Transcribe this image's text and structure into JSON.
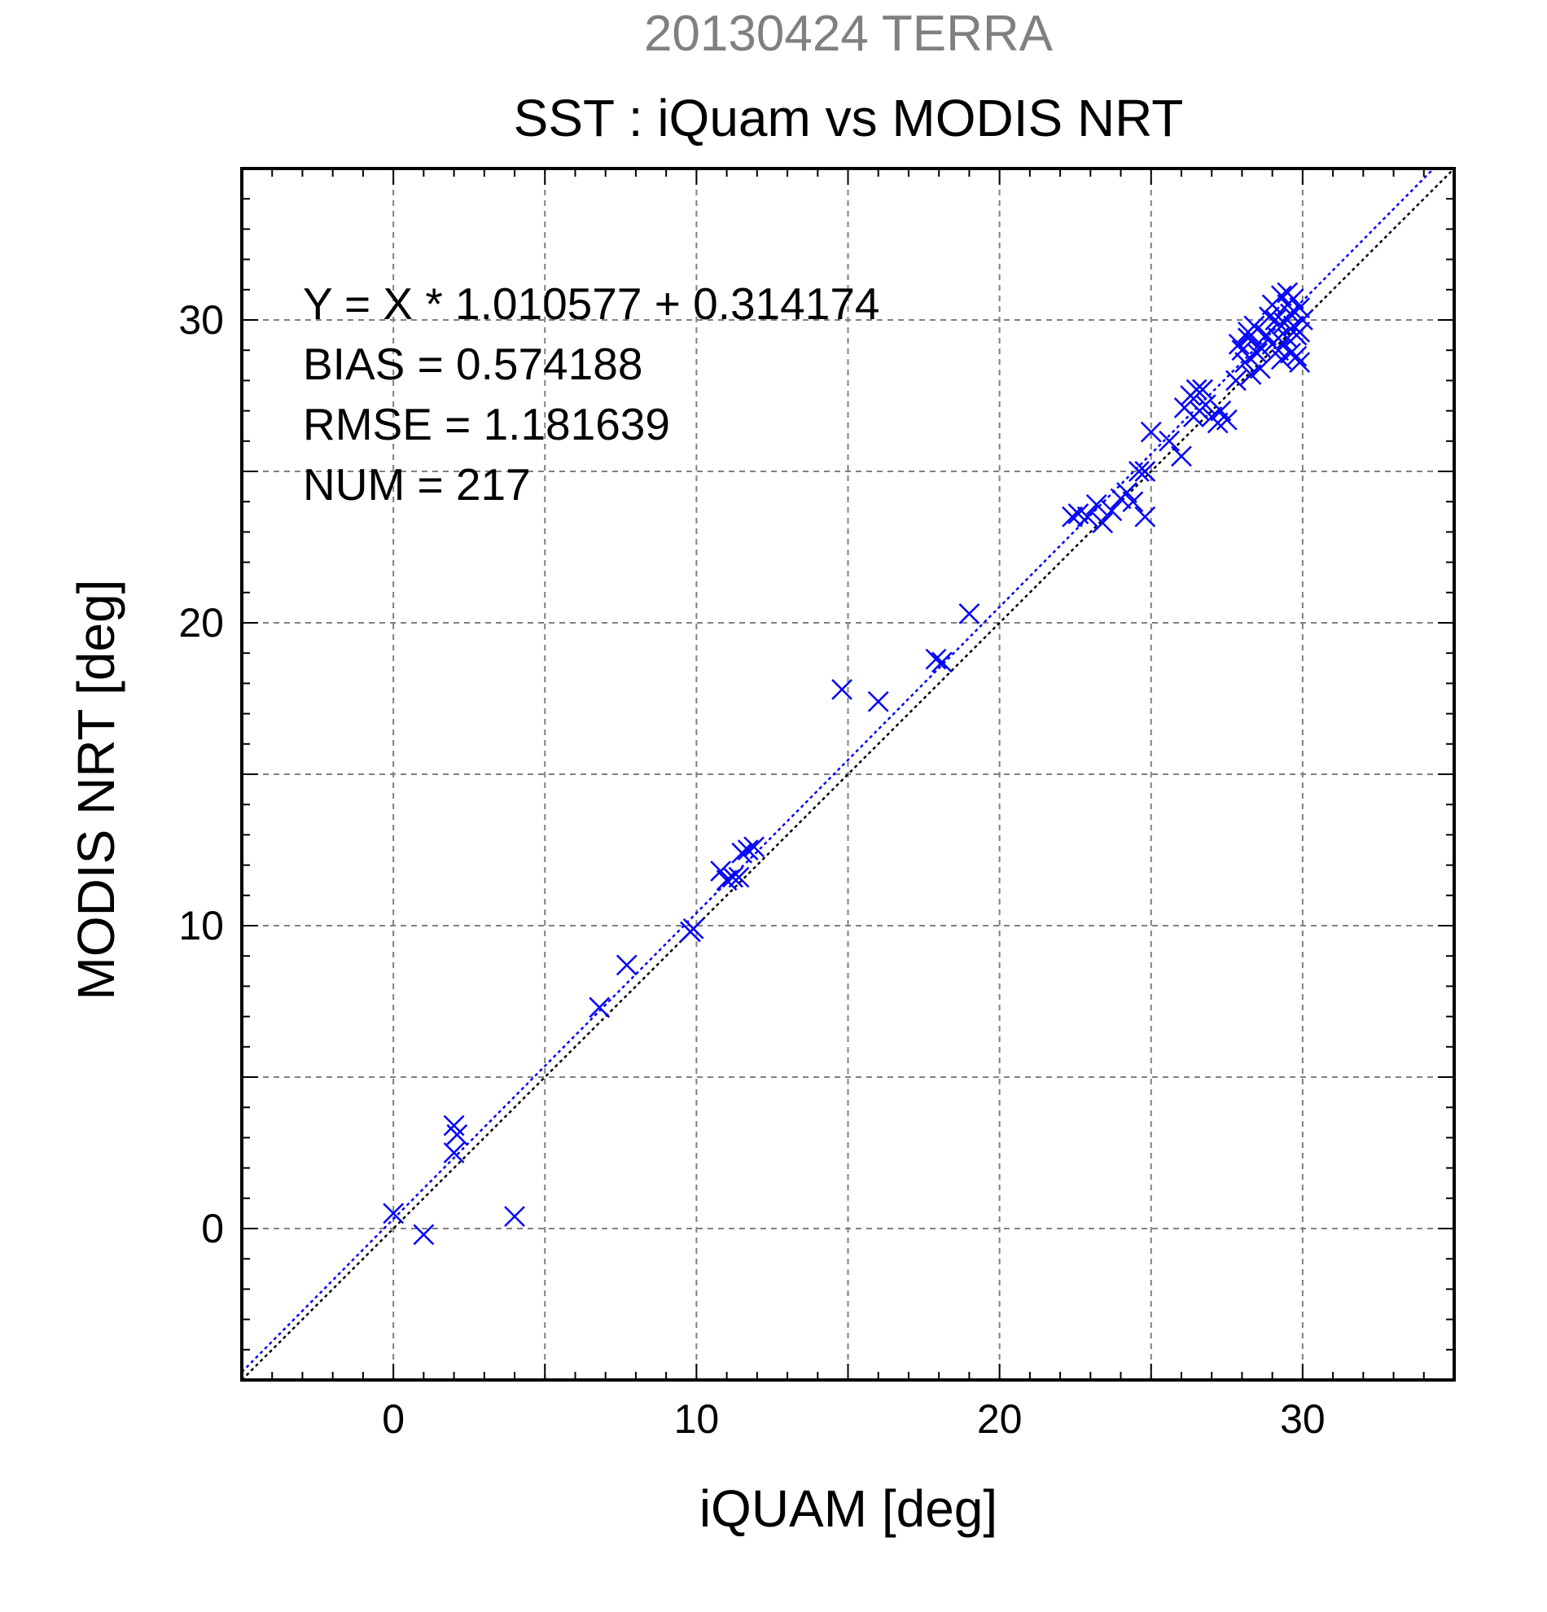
{
  "chart_data": {
    "type": "scatter",
    "date_label": "20130424 TERRA",
    "title": "SST : iQuam vs MODIS NRT",
    "xlabel": "iQUAM [deg]",
    "ylabel": "MODIS NRT [deg]",
    "xlim": [
      -5,
      35
    ],
    "ylim": [
      -5,
      35
    ],
    "xticks": [
      0,
      10,
      20,
      30
    ],
    "yticks": [
      0,
      10,
      20,
      30
    ],
    "grid": true,
    "stats": [
      "Y = X * 1.010577 + 0.314174",
      "BIAS = 0.574188",
      "RMSE = 1.181639",
      "NUM = 217"
    ],
    "regression": {
      "slope": 1.010577,
      "intercept": 0.314174,
      "color": "#0000ff"
    },
    "identity_line_color": "#000000",
    "marker_color": "#0000ff",
    "series": [
      {
        "marker": "x",
        "points": [
          [
            0.0,
            0.5
          ],
          [
            1.0,
            -0.2
          ],
          [
            2.0,
            3.4
          ],
          [
            2.1,
            3.1
          ],
          [
            2.0,
            2.5
          ],
          [
            4.0,
            0.4
          ],
          [
            6.8,
            7.3
          ],
          [
            7.7,
            8.7
          ],
          [
            9.8,
            9.8
          ],
          [
            9.9,
            9.9
          ],
          [
            10.8,
            11.8
          ],
          [
            11.0,
            11.5
          ],
          [
            11.2,
            11.6
          ],
          [
            11.4,
            11.6
          ],
          [
            11.5,
            12.4
          ],
          [
            11.7,
            12.5
          ],
          [
            11.9,
            12.6
          ],
          [
            14.8,
            17.8
          ],
          [
            16.0,
            17.4
          ],
          [
            17.9,
            18.8
          ],
          [
            18.1,
            18.7
          ],
          [
            19.0,
            20.3
          ],
          [
            22.4,
            23.5
          ],
          [
            22.6,
            23.6
          ],
          [
            22.9,
            23.5
          ],
          [
            23.2,
            23.9
          ],
          [
            23.4,
            23.3
          ],
          [
            23.7,
            23.7
          ],
          [
            24.0,
            24.1
          ],
          [
            24.2,
            24.3
          ],
          [
            24.4,
            24.0
          ],
          [
            24.6,
            25.0
          ],
          [
            24.8,
            25.0
          ],
          [
            24.8,
            23.5
          ],
          [
            25.0,
            26.3
          ],
          [
            25.6,
            26.0
          ],
          [
            26.0,
            25.5
          ],
          [
            26.1,
            27.1
          ],
          [
            26.3,
            27.5
          ],
          [
            26.4,
            26.8
          ],
          [
            26.5,
            27.7
          ],
          [
            26.6,
            27.0
          ],
          [
            26.7,
            27.7
          ],
          [
            26.8,
            27.2
          ],
          [
            27.0,
            26.8
          ],
          [
            27.2,
            26.6
          ],
          [
            27.3,
            27.0
          ],
          [
            27.5,
            26.7
          ],
          [
            27.8,
            28.0
          ],
          [
            27.9,
            29.2
          ],
          [
            28.0,
            29.0
          ],
          [
            28.1,
            28.6
          ],
          [
            28.2,
            29.4
          ],
          [
            28.2,
            29.6
          ],
          [
            28.3,
            28.2
          ],
          [
            28.4,
            29.8
          ],
          [
            28.5,
            28.9
          ],
          [
            28.6,
            29.1
          ],
          [
            28.6,
            28.4
          ],
          [
            28.8,
            29.5
          ],
          [
            28.9,
            30.1
          ],
          [
            29.0,
            29.2
          ],
          [
            29.0,
            30.5
          ],
          [
            29.1,
            30.0
          ],
          [
            29.2,
            29.0
          ],
          [
            29.2,
            29.4
          ],
          [
            29.3,
            30.8
          ],
          [
            29.3,
            28.7
          ],
          [
            29.4,
            29.9
          ],
          [
            29.5,
            30.5
          ],
          [
            29.5,
            30.9
          ],
          [
            29.5,
            29.4
          ],
          [
            29.6,
            30.2
          ],
          [
            29.6,
            28.9
          ],
          [
            29.7,
            29.8
          ],
          [
            29.7,
            30.7
          ],
          [
            29.8,
            28.8
          ],
          [
            29.8,
            29.5
          ],
          [
            29.9,
            30.4
          ],
          [
            29.9,
            29.6
          ],
          [
            29.9,
            28.6
          ],
          [
            30.0,
            30.0
          ]
        ]
      }
    ]
  }
}
